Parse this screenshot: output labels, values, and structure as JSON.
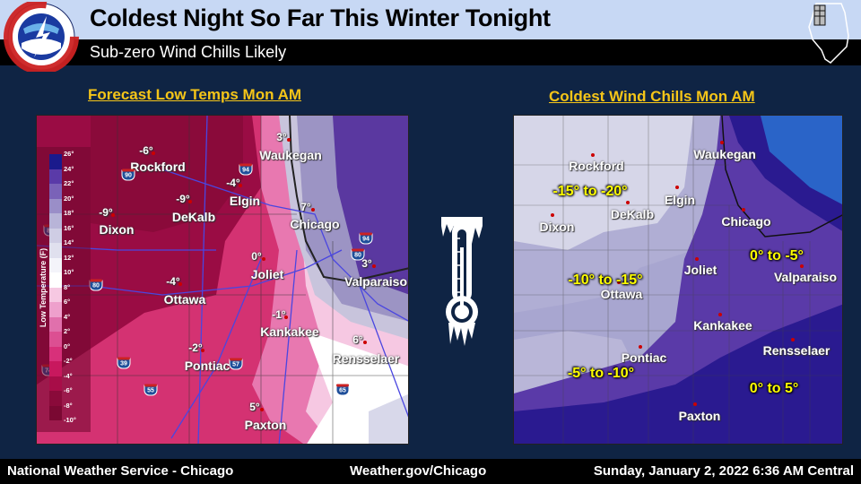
{
  "header": {
    "title": "Coldest Night So Far This Winter Tonight",
    "subtitle": "Sub-zero Wind Chills Likely",
    "logo": "NATIONAL WEATHER SERVICE"
  },
  "colors": {
    "header_bg": "#c7d8f4",
    "title_accent": "#f5c518",
    "range_label": "#ffff00",
    "body_bg": "#0f2444"
  },
  "left_map": {
    "title": "Forecast Low Temps Mon AM",
    "legend": {
      "title": "Low Temperature (F)",
      "ticks": [
        "26°",
        "24°",
        "22°",
        "20°",
        "18°",
        "16°",
        "14°",
        "12°",
        "10°",
        "8°",
        "6°",
        "4°",
        "2°",
        "0°",
        "-2°",
        "-4°",
        "-6°",
        "-8°",
        "-10°"
      ],
      "colors": [
        "#1a1a8c",
        "#5a3aa8",
        "#7a62b8",
        "#9a8ec8",
        "#b8b4d8",
        "#cfcde4",
        "#e0e0ee",
        "#f4f4fa",
        "#ffffff",
        "#f6c8e2",
        "#eea0cc",
        "#e070ac",
        "#dc4f92",
        "#d8307a",
        "#c8185e",
        "#a80d48",
        "#8a0a3a",
        "#7a0832"
      ]
    },
    "cities": [
      {
        "name": "Rockford",
        "temp": "-6°"
      },
      {
        "name": "Waukegan",
        "temp": "3°"
      },
      {
        "name": "Elgin",
        "temp": "-4°"
      },
      {
        "name": "DeKalb",
        "temp": "-9°"
      },
      {
        "name": "Dixon",
        "temp": "-9°"
      },
      {
        "name": "Chicago",
        "temp": "7°"
      },
      {
        "name": "Joliet",
        "temp": "0°"
      },
      {
        "name": "Ottawa",
        "temp": "-4°"
      },
      {
        "name": "Valparaiso",
        "temp": "3°"
      },
      {
        "name": "Kankakee",
        "temp": "-1°"
      },
      {
        "name": "Rensselaer",
        "temp": "6°"
      },
      {
        "name": "Pontiac",
        "temp": "-2°"
      },
      {
        "name": "Paxton",
        "temp": "5°"
      }
    ],
    "interstates": [
      "90",
      "94",
      "88",
      "80",
      "39",
      "55",
      "57",
      "74",
      "94",
      "80",
      "65"
    ]
  },
  "right_map": {
    "title": "Coldest Wind Chills Mon AM",
    "cities": [
      "Waukegan",
      "Rockford",
      "Elgin",
      "DeKalb",
      "Dixon",
      "Chicago",
      "Joliet",
      "Ottawa",
      "Valparaiso",
      "Kankakee",
      "Rensselaer",
      "Pontiac",
      "Paxton"
    ],
    "ranges": [
      "-15° to -20°",
      "-10° to -15°",
      "-5° to -10°",
      "0° to -5°",
      "0° to 5°"
    ]
  },
  "center_icon": "thermometer-icon",
  "footer": {
    "left": "National Weather Service - Chicago",
    "center": "Weather.gov/Chicago",
    "right": "Sunday, January 2, 2022 6:36 AM Central"
  }
}
